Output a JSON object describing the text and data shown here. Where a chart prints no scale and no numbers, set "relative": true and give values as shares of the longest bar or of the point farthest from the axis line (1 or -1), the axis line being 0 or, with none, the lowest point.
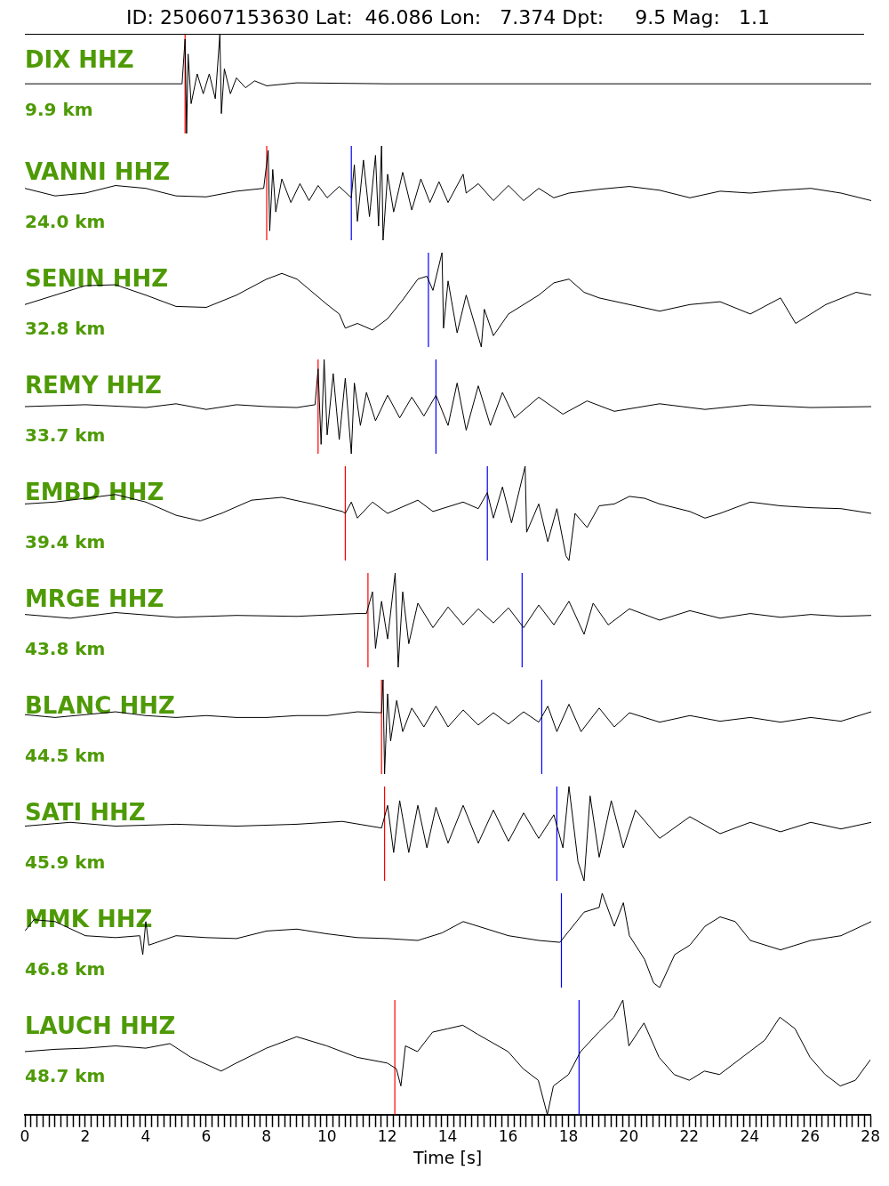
{
  "chart_data": [
    {
      "type": "line",
      "title": "ID: 250607153630 Lat:  46.086 Lon:   7.374 Dpt:     9.5 Mag:   1.1",
      "annotations": [
        "DIX HHZ",
        "9.9 km"
      ],
      "relative": true,
      "xlim": [
        0,
        28
      ],
      "tick_labels": false,
      "color": "#000000",
      "x": [
        0,
        5.2,
        5.3,
        5.35,
        5.4,
        5.5,
        5.7,
        5.9,
        6.1,
        6.3,
        6.45,
        6.5,
        6.6,
        6.8,
        7.0,
        7.3,
        7.6,
        8,
        9,
        12,
        28
      ],
      "values": [
        0.5,
        0.5,
        0.95,
        0,
        0.8,
        0.3,
        0.6,
        0.4,
        0.6,
        0.35,
        1,
        0.2,
        0.65,
        0.4,
        0.56,
        0.46,
        0.53,
        0.48,
        0.51,
        0.5,
        0.5
      ],
      "ref_lines": [
        {
          "axis": "x",
          "value": 5.3,
          "color": "#ff0000"
        }
      ]
    },
    {
      "type": "line",
      "annotations": [
        "VANNI HHZ",
        "24.0 km"
      ],
      "relative": true,
      "xlim": [
        0,
        28
      ],
      "tick_labels": false,
      "color": "#000000",
      "x": [
        0,
        1,
        2,
        3,
        4,
        5,
        6,
        7,
        7.9,
        8.05,
        8.1,
        8.2,
        8.3,
        8.5,
        8.8,
        9.1,
        9.4,
        9.7,
        10,
        10.4,
        10.8,
        10.9,
        11,
        11.2,
        11.4,
        11.6,
        11.7,
        11.8,
        11.85,
        12,
        12.2,
        12.5,
        12.8,
        13.1,
        13.4,
        13.7,
        14,
        14.5,
        14.6,
        15,
        15.5,
        16,
        16.5,
        17,
        17.5,
        18,
        19,
        20,
        21,
        22,
        23,
        24,
        25,
        26,
        27,
        28
      ],
      "values": [
        0.55,
        0.47,
        0.5,
        0.58,
        0.55,
        0.47,
        0.46,
        0.52,
        0.55,
        0.95,
        0.1,
        0.75,
        0.3,
        0.65,
        0.4,
        0.6,
        0.42,
        0.58,
        0.45,
        0.57,
        0.45,
        0.8,
        0.2,
        0.85,
        0.25,
        0.9,
        0.15,
        1,
        0,
        0.7,
        0.3,
        0.72,
        0.32,
        0.65,
        0.4,
        0.62,
        0.4,
        0.7,
        0.5,
        0.6,
        0.42,
        0.58,
        0.42,
        0.55,
        0.45,
        0.5,
        0.54,
        0.57,
        0.53,
        0.45,
        0.52,
        0.5,
        0.53,
        0.55,
        0.5,
        0.42
      ],
      "ref_lines": [
        {
          "axis": "x",
          "value": 8,
          "color": "#ff0000"
        },
        {
          "axis": "x",
          "value": 10.8,
          "color": "#0000ff"
        }
      ]
    },
    {
      "type": "line",
      "annotations": [
        "SENIN HHZ",
        "32.8 km"
      ],
      "relative": true,
      "xlim": [
        0,
        28
      ],
      "tick_labels": false,
      "color": "#000000",
      "x": [
        0,
        1,
        2,
        3,
        4,
        5,
        6,
        7,
        8,
        8.5,
        9,
        10,
        10.4,
        10.6,
        11,
        11.5,
        12,
        12.5,
        13,
        13.3,
        13.5,
        13.8,
        13.85,
        14,
        14.3,
        14.6,
        15.1,
        15.2,
        15.5,
        16,
        16.5,
        17,
        17.5,
        18,
        18.5,
        19,
        20,
        21,
        22,
        23,
        24,
        25,
        25.5,
        26.5,
        27.5,
        28
      ],
      "values": [
        0.45,
        0.55,
        0.65,
        0.66,
        0.55,
        0.43,
        0.42,
        0.55,
        0.72,
        0.78,
        0.72,
        0.45,
        0.35,
        0.2,
        0.25,
        0.18,
        0.3,
        0.5,
        0.72,
        0.75,
        0.6,
        1,
        0.2,
        0.7,
        0.15,
        0.55,
        0,
        0.4,
        0.12,
        0.35,
        0.45,
        0.55,
        0.68,
        0.72,
        0.58,
        0.52,
        0.45,
        0.38,
        0.45,
        0.48,
        0.35,
        0.52,
        0.25,
        0.45,
        0.58,
        0.55
      ],
      "ref_lines": [
        {
          "axis": "x",
          "value": 13.35,
          "color": "#0000ff"
        }
      ]
    },
    {
      "type": "line",
      "annotations": [
        "REMY HHZ",
        "33.7 km"
      ],
      "relative": true,
      "xlim": [
        0,
        28
      ],
      "tick_labels": false,
      "color": "#000000",
      "x": [
        0,
        2,
        4,
        5,
        6,
        7,
        8,
        9,
        9.6,
        9.7,
        9.8,
        9.9,
        10,
        10.2,
        10.4,
        10.6,
        10.8,
        10.9,
        11.1,
        11.3,
        11.6,
        12,
        12.4,
        12.8,
        13.2,
        13.6,
        14,
        14.3,
        14.6,
        15,
        15.4,
        15.8,
        16.2,
        17,
        17.8,
        18.6,
        19.5,
        21,
        22.5,
        24,
        26,
        28
      ],
      "values": [
        0.5,
        0.52,
        0.49,
        0.53,
        0.47,
        0.52,
        0.5,
        0.49,
        0.52,
        0.9,
        0.1,
        1,
        0.2,
        0.85,
        0.15,
        0.8,
        0,
        0.75,
        0.3,
        0.65,
        0.35,
        0.62,
        0.38,
        0.6,
        0.4,
        0.62,
        0.3,
        0.75,
        0.25,
        0.72,
        0.3,
        0.65,
        0.38,
        0.6,
        0.42,
        0.56,
        0.45,
        0.53,
        0.47,
        0.52,
        0.49,
        0.5
      ],
      "ref_lines": [
        {
          "axis": "x",
          "value": 9.7,
          "color": "#ff0000"
        },
        {
          "axis": "x",
          "value": 13.6,
          "color": "#0000ff"
        }
      ]
    },
    {
      "type": "line",
      "annotations": [
        "EMBD HHZ",
        "39.4 km"
      ],
      "relative": true,
      "xlim": [
        0,
        28
      ],
      "tick_labels": false,
      "color": "#000000",
      "x": [
        0,
        1,
        2,
        3,
        4,
        5,
        5.8,
        6.5,
        7.5,
        8.5,
        9.5,
        10.5,
        10.6,
        10.8,
        11,
        11.5,
        12,
        13,
        13.5,
        14.5,
        15,
        15.3,
        15.5,
        15.8,
        16.1,
        16.55,
        16.6,
        17,
        17.3,
        17.6,
        17.9,
        18,
        18.2,
        18.6,
        19,
        19.5,
        20,
        20.5,
        21,
        22,
        22.5,
        23,
        24,
        25,
        26,
        27,
        28
      ],
      "values": [
        0.6,
        0.62,
        0.66,
        0.7,
        0.62,
        0.48,
        0.42,
        0.5,
        0.64,
        0.67,
        0.6,
        0.52,
        0.5,
        0.62,
        0.45,
        0.62,
        0.5,
        0.64,
        0.52,
        0.62,
        0.55,
        0.72,
        0.45,
        0.78,
        0.4,
        1,
        0.3,
        0.6,
        0.2,
        0.55,
        0.05,
        0,
        0.5,
        0.35,
        0.58,
        0.6,
        0.68,
        0.66,
        0.6,
        0.52,
        0.45,
        0.5,
        0.62,
        0.58,
        0.56,
        0.55,
        0.5
      ],
      "ref_lines": [
        {
          "axis": "x",
          "value": 10.6,
          "color": "#ff0000"
        },
        {
          "axis": "x",
          "value": 15.3,
          "color": "#0000ff"
        }
      ]
    },
    {
      "type": "line",
      "annotations": [
        "MRGE HHZ",
        "43.8 km"
      ],
      "relative": true,
      "xlim": [
        0,
        28
      ],
      "tick_labels": false,
      "color": "#000000",
      "x": [
        0,
        1.5,
        3,
        5,
        7,
        9,
        11,
        11.3,
        11.5,
        11.6,
        11.8,
        12,
        12.25,
        12.35,
        12.5,
        12.7,
        13,
        13.5,
        14,
        14.5,
        15,
        15.5,
        16,
        16.5,
        17,
        17.5,
        18,
        18.5,
        18.8,
        19.3,
        20,
        21,
        22,
        23,
        24,
        25,
        26,
        27,
        28
      ],
      "values": [
        0.56,
        0.52,
        0.58,
        0.53,
        0.55,
        0.54,
        0.57,
        0.57,
        0.8,
        0.2,
        0.7,
        0.3,
        1,
        0,
        0.8,
        0.25,
        0.68,
        0.42,
        0.64,
        0.45,
        0.62,
        0.47,
        0.63,
        0.42,
        0.66,
        0.45,
        0.7,
        0.35,
        0.68,
        0.45,
        0.62,
        0.5,
        0.6,
        0.52,
        0.57,
        0.53,
        0.56,
        0.54,
        0.55
      ],
      "ref_lines": [
        {
          "axis": "x",
          "value": 11.35,
          "color": "#ff0000"
        },
        {
          "axis": "x",
          "value": 16.45,
          "color": "#0000ff"
        }
      ]
    },
    {
      "type": "line",
      "annotations": [
        "BLANC HHZ",
        "44.5 km"
      ],
      "relative": true,
      "xlim": [
        0,
        28
      ],
      "tick_labels": false,
      "color": "#000000",
      "x": [
        0,
        1,
        2,
        3,
        4,
        5,
        6,
        7,
        8,
        9,
        10,
        11,
        11.8,
        11.85,
        11.9,
        12,
        12.1,
        12.3,
        12.5,
        12.8,
        13.2,
        13.6,
        14,
        14.5,
        15,
        15.5,
        16,
        16.5,
        17,
        17.3,
        17.6,
        18,
        18.4,
        19,
        19.5,
        20,
        21,
        22,
        23,
        24,
        25,
        26,
        27,
        28
      ],
      "values": [
        0.63,
        0.6,
        0.63,
        0.66,
        0.62,
        0.6,
        0.62,
        0.6,
        0.6,
        0.62,
        0.62,
        0.66,
        0.65,
        1,
        0,
        0.85,
        0.35,
        0.78,
        0.45,
        0.7,
        0.5,
        0.72,
        0.5,
        0.68,
        0.52,
        0.65,
        0.53,
        0.66,
        0.55,
        0.72,
        0.45,
        0.74,
        0.45,
        0.7,
        0.5,
        0.65,
        0.55,
        0.62,
        0.56,
        0.6,
        0.55,
        0.6,
        0.56,
        0.66
      ],
      "ref_lines": [
        {
          "axis": "x",
          "value": 11.8,
          "color": "#ff0000"
        },
        {
          "axis": "x",
          "value": 17.1,
          "color": "#0000ff"
        }
      ]
    },
    {
      "type": "line",
      "annotations": [
        "SATI HHZ",
        "45.9 km"
      ],
      "relative": true,
      "xlim": [
        0,
        28
      ],
      "tick_labels": false,
      "color": "#000000",
      "x": [
        0,
        1.5,
        3,
        5,
        7,
        9,
        10.5,
        11.8,
        12,
        12.2,
        12.4,
        12.7,
        13,
        13.3,
        13.6,
        14,
        14.5,
        15,
        15.5,
        16,
        16.5,
        17,
        17.5,
        17.8,
        18,
        18.3,
        18.5,
        18.7,
        19,
        19.4,
        19.8,
        20.2,
        21,
        22,
        23,
        24,
        25,
        26,
        27,
        28
      ],
      "values": [
        0.58,
        0.62,
        0.58,
        0.6,
        0.58,
        0.6,
        0.63,
        0.56,
        0.8,
        0.3,
        0.85,
        0.3,
        0.8,
        0.35,
        0.78,
        0.4,
        0.8,
        0.4,
        0.75,
        0.42,
        0.72,
        0.45,
        0.7,
        0.35,
        1,
        0.2,
        0,
        0.9,
        0.25,
        0.85,
        0.35,
        0.75,
        0.45,
        0.68,
        0.5,
        0.62,
        0.52,
        0.62,
        0.55,
        0.62
      ],
      "ref_lines": [
        {
          "axis": "x",
          "value": 11.9,
          "color": "#ff0000"
        },
        {
          "axis": "x",
          "value": 17.6,
          "color": "#0000ff"
        }
      ]
    },
    {
      "type": "line",
      "annotations": [
        "MMK HHZ",
        "46.8 km"
      ],
      "relative": true,
      "xlim": [
        0,
        28
      ],
      "tick_labels": false,
      "color": "#000000",
      "x": [
        0,
        0.3,
        1,
        2,
        3,
        3.8,
        3.9,
        4,
        4.1,
        5,
        6,
        7,
        8,
        9,
        10,
        11,
        12,
        13,
        13.8,
        14.5,
        15,
        16,
        17,
        17.7,
        18,
        18.5,
        19,
        19.1,
        19.5,
        19.8,
        20,
        20.5,
        20.8,
        21,
        21.5,
        22,
        22.5,
        23,
        23.5,
        24,
        25,
        26,
        27,
        28
      ],
      "values": [
        0.6,
        0.72,
        0.7,
        0.55,
        0.53,
        0.55,
        0.35,
        0.7,
        0.45,
        0.55,
        0.53,
        0.52,
        0.6,
        0.62,
        0.57,
        0.53,
        0.52,
        0.5,
        0.58,
        0.7,
        0.65,
        0.55,
        0.5,
        0.48,
        0.6,
        0.8,
        0.85,
        1,
        0.65,
        0.9,
        0.55,
        0.3,
        0.05,
        0,
        0.35,
        0.45,
        0.65,
        0.75,
        0.7,
        0.5,
        0.4,
        0.5,
        0.55,
        0.7
      ],
      "ref_lines": [
        {
          "axis": "x",
          "value": 17.75,
          "color": "#0000ff"
        }
      ]
    },
    {
      "type": "line",
      "annotations": [
        "LAUCH HHZ",
        "48.7 km"
      ],
      "xlabel": "Time [s]",
      "relative": true,
      "xlim": [
        0,
        28
      ],
      "tick_labels": "x",
      "color": "#000000",
      "x": [
        0,
        1,
        2,
        3,
        4,
        4.8,
        5.5,
        6.5,
        7,
        8,
        9,
        10,
        11,
        12,
        12.3,
        12.45,
        12.6,
        13,
        13.5,
        14,
        14.5,
        15,
        16,
        16.5,
        17,
        17.3,
        17.5,
        18,
        18.4,
        19,
        19.5,
        19.8,
        20,
        20.5,
        21,
        21.5,
        22,
        22.5,
        23,
        24,
        24.5,
        25,
        25.5,
        26,
        26.5,
        27,
        27.5,
        28
      ],
      "values": [
        0.55,
        0.57,
        0.58,
        0.6,
        0.58,
        0.62,
        0.5,
        0.38,
        0.45,
        0.58,
        0.68,
        0.6,
        0.5,
        0.45,
        0.4,
        0.25,
        0.6,
        0.55,
        0.72,
        0.75,
        0.78,
        0.7,
        0.55,
        0.4,
        0.3,
        0,
        0.25,
        0.35,
        0.55,
        0.72,
        0.85,
        1,
        0.6,
        0.8,
        0.5,
        0.35,
        0.3,
        0.38,
        0.35,
        0.55,
        0.65,
        0.85,
        0.75,
        0.5,
        0.35,
        0.25,
        0.3,
        0.48
      ],
      "ref_lines": [
        {
          "axis": "x",
          "value": 12.25,
          "color": "#ff0000"
        },
        {
          "axis": "x",
          "value": 18.35,
          "color": "#0000ff"
        }
      ],
      "xticks": [
        0,
        {
          "value": 0.2,
          "label": null
        },
        {
          "value": 0.4,
          "label": null
        },
        {
          "value": 0.6,
          "label": null
        },
        {
          "value": 0.8,
          "label": null
        },
        {
          "value": 1,
          "label": null
        },
        {
          "value": 1.2,
          "label": null
        },
        {
          "value": 1.4,
          "label": null
        },
        {
          "value": 1.6,
          "label": null
        },
        {
          "value": 1.8,
          "label": null
        },
        2,
        {
          "value": 2.2,
          "label": null
        },
        {
          "value": 2.4,
          "label": null
        },
        {
          "value": 2.6,
          "label": null
        },
        {
          "value": 2.8,
          "label": null
        },
        {
          "value": 3,
          "label": null
        },
        {
          "value": 3.2,
          "label": null
        },
        {
          "value": 3.4,
          "label": null
        },
        {
          "value": 3.6,
          "label": null
        },
        {
          "value": 3.8,
          "label": null
        },
        4,
        {
          "value": 4.2,
          "label": null
        },
        {
          "value": 4.4,
          "label": null
        },
        {
          "value": 4.6,
          "label": null
        },
        {
          "value": 4.8,
          "label": null
        },
        {
          "value": 5,
          "label": null
        },
        {
          "value": 5.2,
          "label": null
        },
        {
          "value": 5.4,
          "label": null
        },
        {
          "value": 5.6,
          "label": null
        },
        {
          "value": 5.8,
          "label": null
        },
        6,
        {
          "value": 6.2,
          "label": null
        },
        {
          "value": 6.4,
          "label": null
        },
        {
          "value": 6.6,
          "label": null
        },
        {
          "value": 6.8,
          "label": null
        },
        {
          "value": 7,
          "label": null
        },
        {
          "value": 7.2,
          "label": null
        },
        {
          "value": 7.4,
          "label": null
        },
        {
          "value": 7.6,
          "label": null
        },
        {
          "value": 7.8,
          "label": null
        },
        8,
        {
          "value": 8.2,
          "label": null
        },
        {
          "value": 8.4,
          "label": null
        },
        {
          "value": 8.6,
          "label": null
        },
        {
          "value": 8.8,
          "label": null
        },
        {
          "value": 9,
          "label": null
        },
        {
          "value": 9.2,
          "label": null
        },
        {
          "value": 9.4,
          "label": null
        },
        {
          "value": 9.6,
          "label": null
        },
        {
          "value": 9.8,
          "label": null
        },
        10,
        {
          "value": 10.2,
          "label": null
        },
        {
          "value": 10.4,
          "label": null
        },
        {
          "value": 10.6,
          "label": null
        },
        {
          "value": 10.8,
          "label": null
        },
        {
          "value": 11,
          "label": null
        },
        {
          "value": 11.2,
          "label": null
        },
        {
          "value": 11.4,
          "label": null
        },
        {
          "value": 11.6,
          "label": null
        },
        {
          "value": 11.8,
          "label": null
        },
        12,
        {
          "value": 12.2,
          "label": null
        },
        {
          "value": 12.4,
          "label": null
        },
        {
          "value": 12.6,
          "label": null
        },
        {
          "value": 12.8,
          "label": null
        },
        {
          "value": 13,
          "label": null
        },
        {
          "value": 13.2,
          "label": null
        },
        {
          "value": 13.4,
          "label": null
        },
        {
          "value": 13.6,
          "label": null
        },
        {
          "value": 13.8,
          "label": null
        },
        14,
        {
          "value": 14.2,
          "label": null
        },
        {
          "value": 14.4,
          "label": null
        },
        {
          "value": 14.6,
          "label": null
        },
        {
          "value": 14.8,
          "label": null
        },
        {
          "value": 15,
          "label": null
        },
        {
          "value": 15.2,
          "label": null
        },
        {
          "value": 15.4,
          "label": null
        },
        {
          "value": 15.6,
          "label": null
        },
        {
          "value": 15.8,
          "label": null
        },
        16,
        {
          "value": 16.2,
          "label": null
        },
        {
          "value": 16.4,
          "label": null
        },
        {
          "value": 16.6,
          "label": null
        },
        {
          "value": 16.8,
          "label": null
        },
        {
          "value": 17,
          "label": null
        },
        {
          "value": 17.2,
          "label": null
        },
        {
          "value": 17.4,
          "label": null
        },
        {
          "value": 17.6,
          "label": null
        },
        {
          "value": 17.8,
          "label": null
        },
        18,
        {
          "value": 18.2,
          "label": null
        },
        {
          "value": 18.4,
          "label": null
        },
        {
          "value": 18.6,
          "label": null
        },
        {
          "value": 18.8,
          "label": null
        },
        {
          "value": 19,
          "label": null
        },
        {
          "value": 19.2,
          "label": null
        },
        {
          "value": 19.4,
          "label": null
        },
        {
          "value": 19.6,
          "label": null
        },
        {
          "value": 19.8,
          "label": null
        },
        20,
        {
          "value": 20.2,
          "label": null
        },
        {
          "value": 20.4,
          "label": null
        },
        {
          "value": 20.6,
          "label": null
        },
        {
          "value": 20.8,
          "label": null
        },
        {
          "value": 21,
          "label": null
        },
        {
          "value": 21.2,
          "label": null
        },
        {
          "value": 21.4,
          "label": null
        },
        {
          "value": 21.6,
          "label": null
        },
        {
          "value": 21.8,
          "label": null
        },
        22,
        {
          "value": 22.2,
          "label": null
        },
        {
          "value": 22.4,
          "label": null
        },
        {
          "value": 22.6,
          "label": null
        },
        {
          "value": 22.8,
          "label": null
        },
        {
          "value": 23,
          "label": null
        },
        {
          "value": 23.2,
          "label": null
        },
        {
          "value": 23.4,
          "label": null
        },
        {
          "value": 23.6,
          "label": null
        },
        {
          "value": 23.8,
          "label": null
        },
        24,
        {
          "value": 24.2,
          "label": null
        },
        {
          "value": 24.4,
          "label": null
        },
        {
          "value": 24.6,
          "label": null
        },
        {
          "value": 24.8,
          "label": null
        },
        {
          "value": 25,
          "label": null
        },
        {
          "value": 25.2,
          "label": null
        },
        {
          "value": 25.4,
          "label": null
        },
        {
          "value": 25.6,
          "label": null
        },
        {
          "value": 25.8,
          "label": null
        },
        26,
        {
          "value": 26.2,
          "label": null
        },
        {
          "value": 26.4,
          "label": null
        },
        {
          "value": 26.6,
          "label": null
        },
        {
          "value": 26.8,
          "label": null
        },
        {
          "value": 27,
          "label": null
        },
        {
          "value": 27.2,
          "label": null
        },
        {
          "value": 27.4,
          "label": null
        },
        {
          "value": 27.6,
          "label": null
        },
        {
          "value": 27.8,
          "label": null
        },
        28
      ]
    }
  ]
}
